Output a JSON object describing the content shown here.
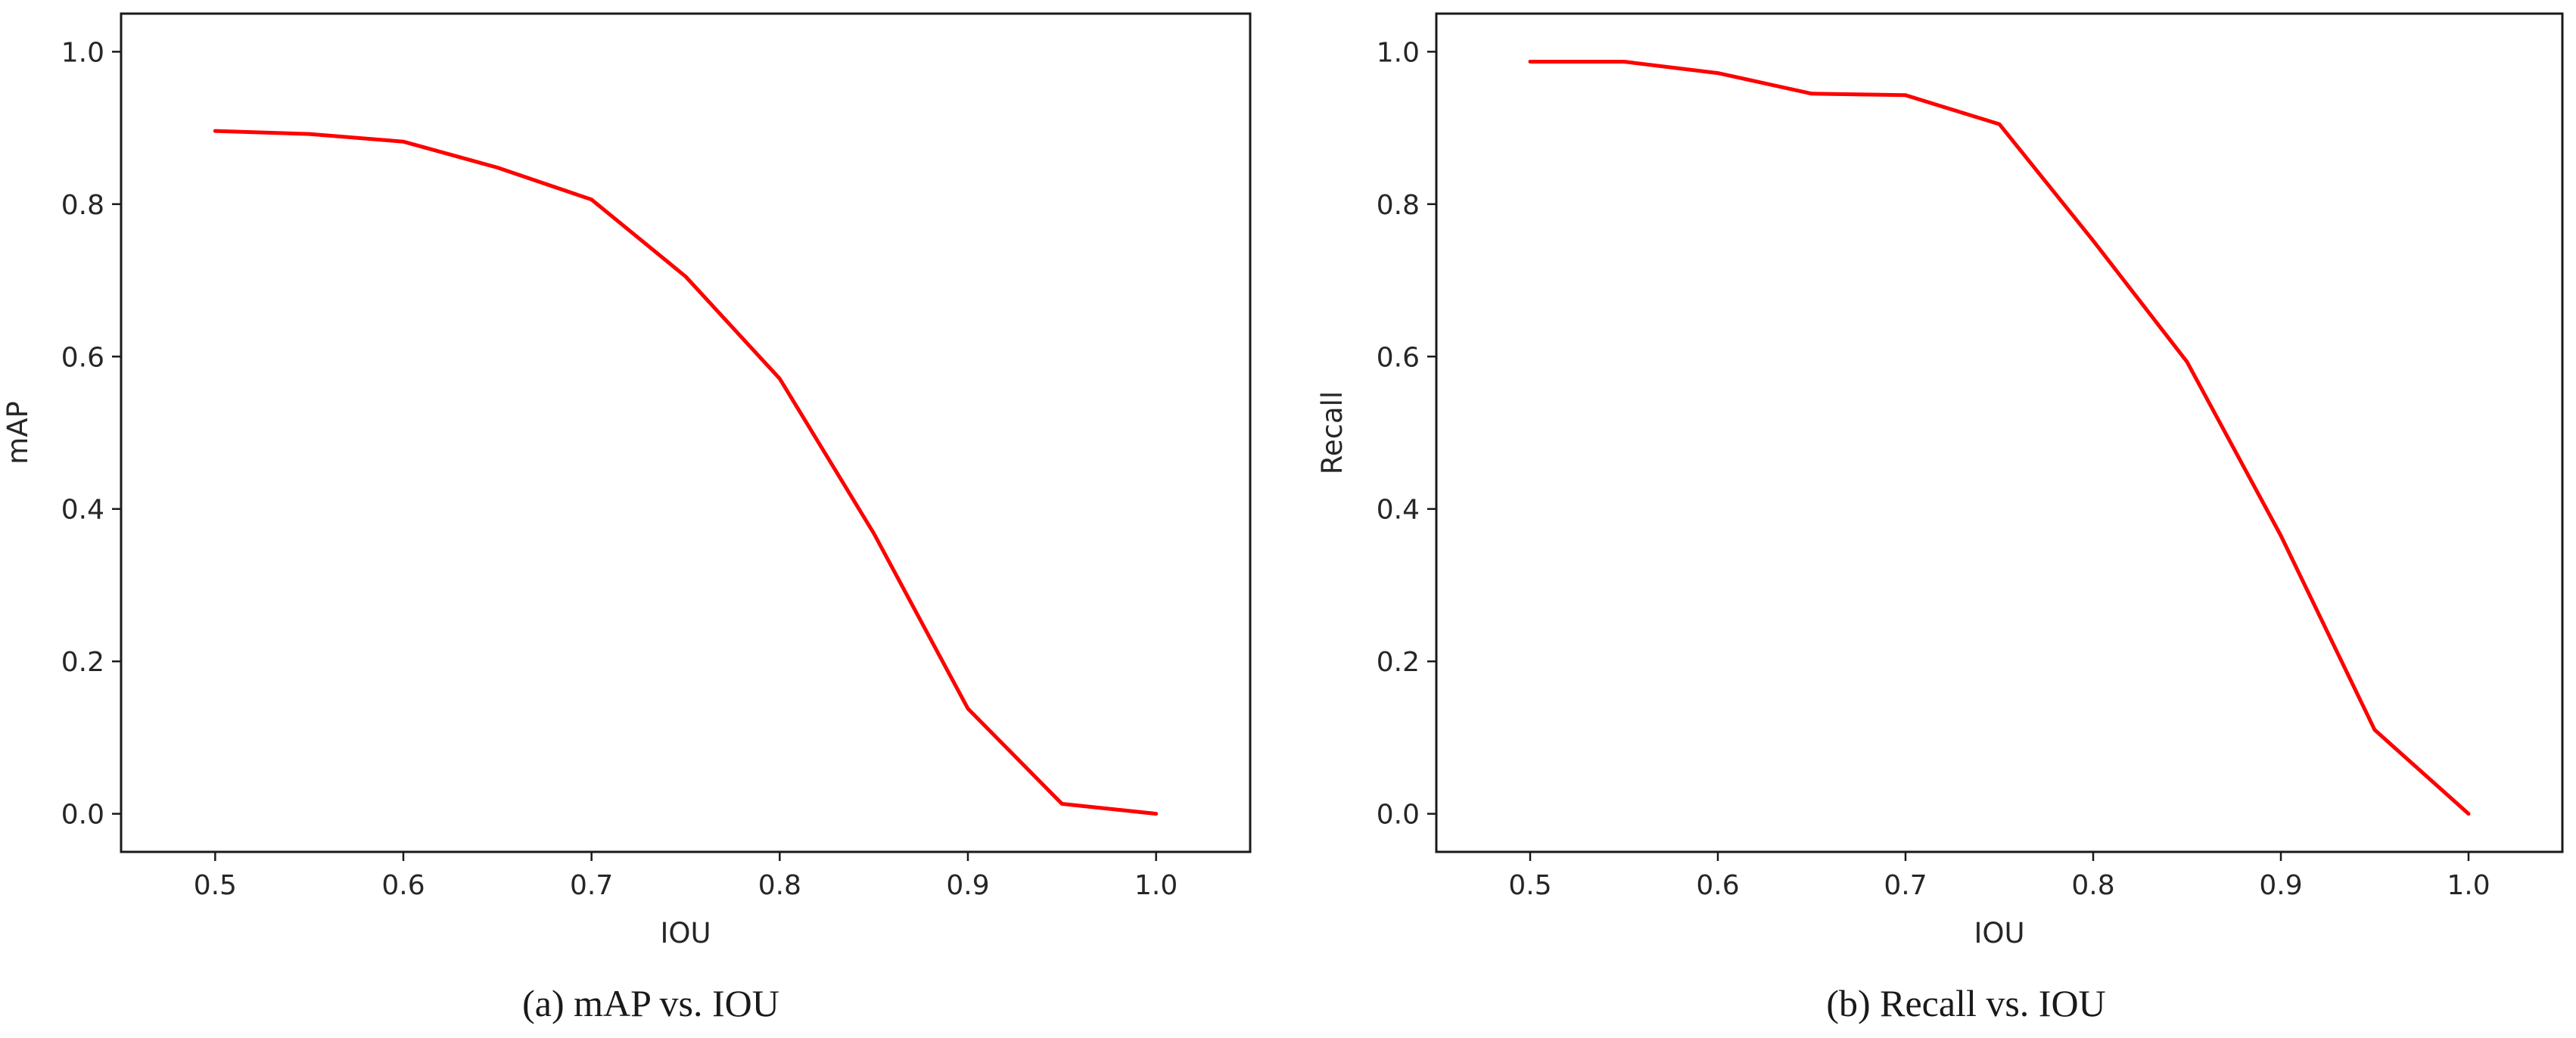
{
  "chart_data": [
    {
      "type": "line",
      "caption": "(a) mAP vs. IOU",
      "title": "",
      "xlabel": "IOU",
      "ylabel": "mAP",
      "xlim": [
        0.45,
        1.05
      ],
      "ylim": [
        -0.05,
        1.05
      ],
      "xticks": [
        "0.5",
        "0.6",
        "0.7",
        "0.8",
        "0.9",
        "1.0"
      ],
      "yticks": [
        "0.0",
        "0.2",
        "0.4",
        "0.6",
        "0.8",
        "1.0"
      ],
      "grid": false,
      "legend": "none",
      "color": "#ff0000",
      "x": [
        0.5,
        0.55,
        0.6,
        0.65,
        0.7,
        0.75,
        0.8,
        0.85,
        0.9,
        0.95,
        1.0
      ],
      "series": [
        {
          "values": [
            0.896,
            0.892,
            0.882,
            0.848,
            0.806,
            0.705,
            0.571,
            0.368,
            0.138,
            0.013,
            0.0
          ]
        }
      ]
    },
    {
      "type": "line",
      "caption": "(b) Recall vs. IOU",
      "title": "",
      "xlabel": "IOU",
      "ylabel": "Recall",
      "xlim": [
        0.45,
        1.05
      ],
      "ylim": [
        -0.05,
        1.05
      ],
      "xticks": [
        "0.5",
        "0.6",
        "0.7",
        "0.8",
        "0.9",
        "1.0"
      ],
      "yticks": [
        "0.0",
        "0.2",
        "0.4",
        "0.6",
        "0.8",
        "1.0"
      ],
      "grid": false,
      "legend": "none",
      "color": "#ff0000",
      "x": [
        0.5,
        0.55,
        0.6,
        0.65,
        0.7,
        0.75,
        0.8,
        0.85,
        0.9,
        0.95,
        1.0
      ],
      "series": [
        {
          "values": [
            0.987,
            0.987,
            0.972,
            0.945,
            0.943,
            0.905,
            0.752,
            0.593,
            0.365,
            0.11,
            0.0
          ]
        }
      ]
    }
  ]
}
